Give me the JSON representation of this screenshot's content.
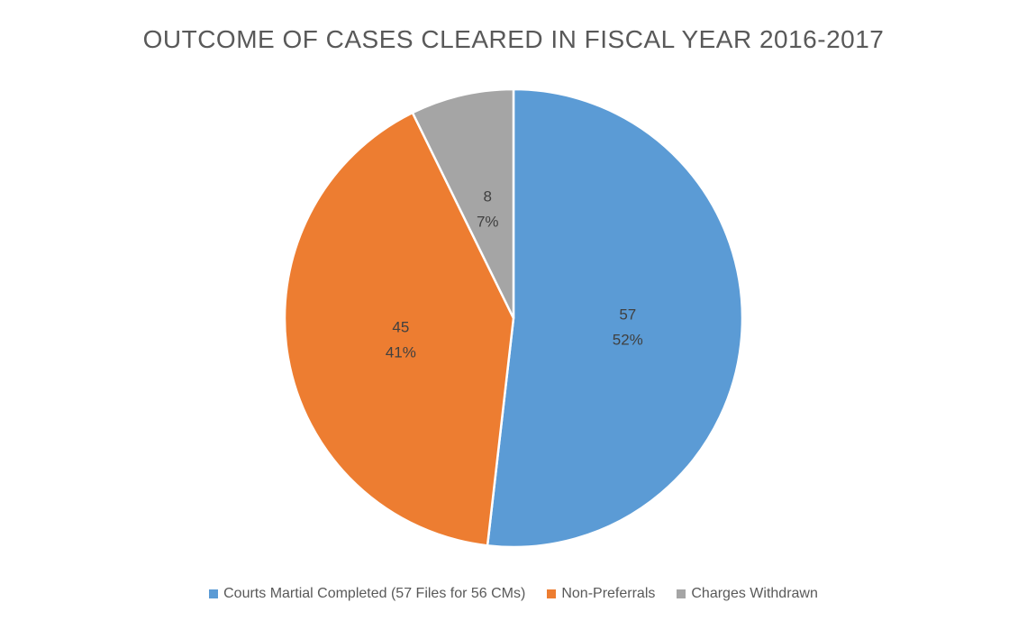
{
  "chart_data": {
    "type": "pie",
    "title": "OUTCOME OF CASES CLEARED IN FISCAL YEAR 2016-2017",
    "slices": [
      {
        "name": "Courts Martial Completed (57 Files for 56 CMs)",
        "value": 57,
        "percent_label": "52%",
        "color": "#5B9BD5"
      },
      {
        "name": "Non-Preferrals",
        "value": 45,
        "percent_label": "41%",
        "color": "#ED7D31"
      },
      {
        "name": "Charges Withdrawn",
        "value": 8,
        "percent_label": "7%",
        "color": "#A5A5A5"
      }
    ],
    "legend_position": "bottom"
  }
}
